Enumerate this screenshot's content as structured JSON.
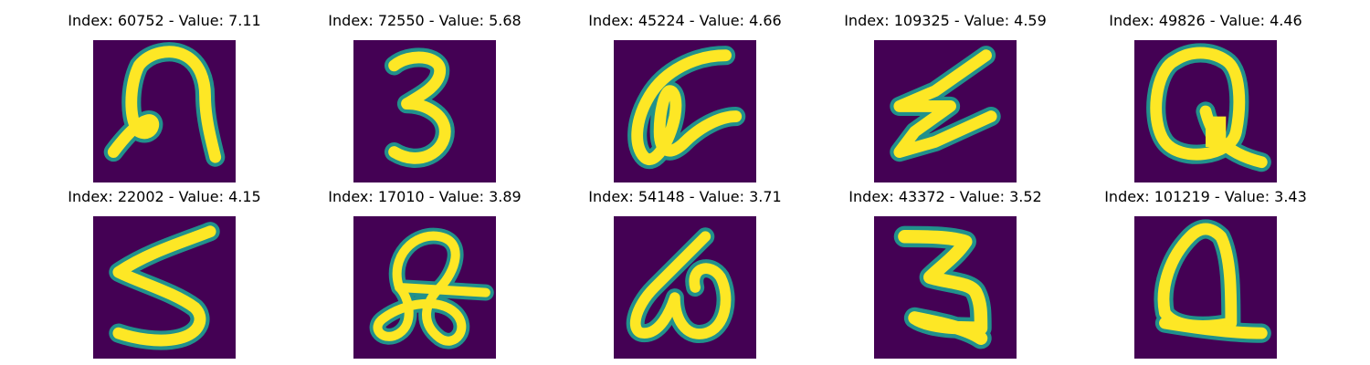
{
  "colors": {
    "background": "#440154",
    "edge": "#21918c",
    "stroke": "#fde725"
  },
  "panels": [
    {
      "title": "Index: 60752 - Value: 7.11",
      "glyph": "ligature-n-like"
    },
    {
      "title": "Index: 72550 - Value: 5.68",
      "glyph": "digit-3-like"
    },
    {
      "title": "Index: 45224 - Value: 4.66",
      "glyph": "alpha-like"
    },
    {
      "title": "Index: 109325 - Value: 4.59",
      "glyph": "zigzag-sigma-like"
    },
    {
      "title": "Index: 49826 - Value: 4.46",
      "glyph": "q-like"
    },
    {
      "title": "Index: 22002 - Value: 4.15",
      "glyph": "digit-5-like"
    },
    {
      "title": "Index: 17010 - Value: 3.89",
      "glyph": "looped-a-like"
    },
    {
      "title": "Index: 54148 - Value: 3.71",
      "glyph": "omega-like"
    },
    {
      "title": "Index: 43372 - Value: 3.52",
      "glyph": "digit-2-z-like"
    },
    {
      "title": "Index: 101219 - Value: 3.43",
      "glyph": "q-like"
    }
  ]
}
